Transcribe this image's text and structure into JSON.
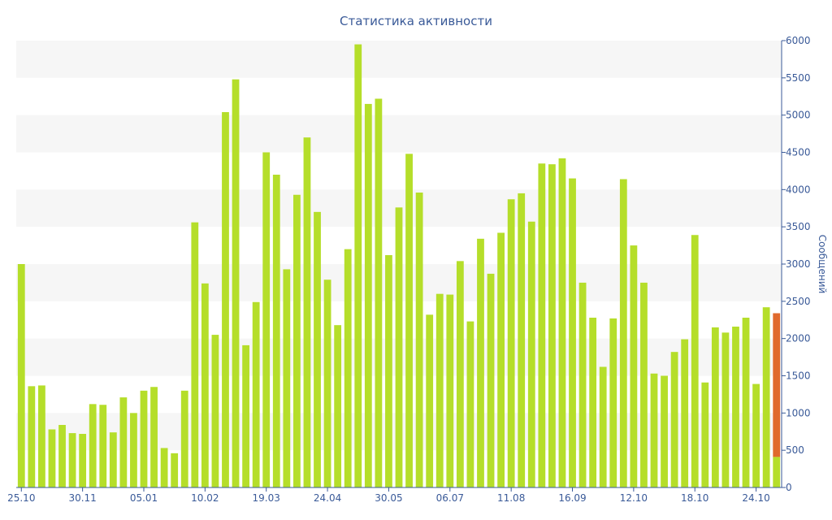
{
  "chart_data": {
    "type": "bar",
    "title": "Статистика активности",
    "ylabel": "Сообщений",
    "xlabel": "",
    "ylim": [
      0,
      6000
    ],
    "yticks": [
      0,
      500,
      1000,
      1500,
      2000,
      2500,
      3000,
      3500,
      4000,
      4500,
      5000,
      5500,
      6000
    ],
    "y_axis_position": "right",
    "grid": "alternating horizontal bands",
    "x_tick_labels": [
      {
        "index": 0,
        "label": "25.10"
      },
      {
        "index": 6,
        "label": "30.11"
      },
      {
        "index": 12,
        "label": "05.01"
      },
      {
        "index": 18,
        "label": "10.02"
      },
      {
        "index": 24,
        "label": "19.03"
      },
      {
        "index": 30,
        "label": "24.04"
      },
      {
        "index": 36,
        "label": "30.05"
      },
      {
        "index": 42,
        "label": "06.07"
      },
      {
        "index": 48,
        "label": "11.08"
      },
      {
        "index": 54,
        "label": "16.09"
      },
      {
        "index": 60,
        "label": "12.10"
      },
      {
        "index": 66,
        "label": "18.10"
      },
      {
        "index": 72,
        "label": "24.10"
      }
    ],
    "values": [
      3000,
      1360,
      1370,
      780,
      840,
      730,
      720,
      1120,
      1110,
      740,
      1210,
      1000,
      1300,
      1350,
      530,
      460,
      1300,
      3560,
      2740,
      2050,
      5040,
      5480,
      1910,
      2490,
      4500,
      4200,
      2930,
      3930,
      4700,
      3700,
      2790,
      2180,
      3200,
      5950,
      5150,
      5220,
      3120,
      3760,
      4480,
      3960,
      2320,
      2600,
      2590,
      3040,
      2230,
      3340,
      2870,
      3420,
      3870,
      3950,
      3570,
      4350,
      4340,
      4420,
      4150,
      2750,
      2280,
      1620,
      2270,
      4140,
      3250,
      2750,
      1530,
      1500,
      1820,
      1990,
      3390,
      1410,
      2150,
      2080,
      2160,
      2280,
      1390,
      2420,
      2340
    ],
    "highlight": {
      "index": 74,
      "total": 2340,
      "base": 410,
      "color": "#e06a2c"
    },
    "colors": {
      "bar": "#b5de2a",
      "axis": "#3a5a98",
      "band": "#f6f6f6"
    }
  }
}
